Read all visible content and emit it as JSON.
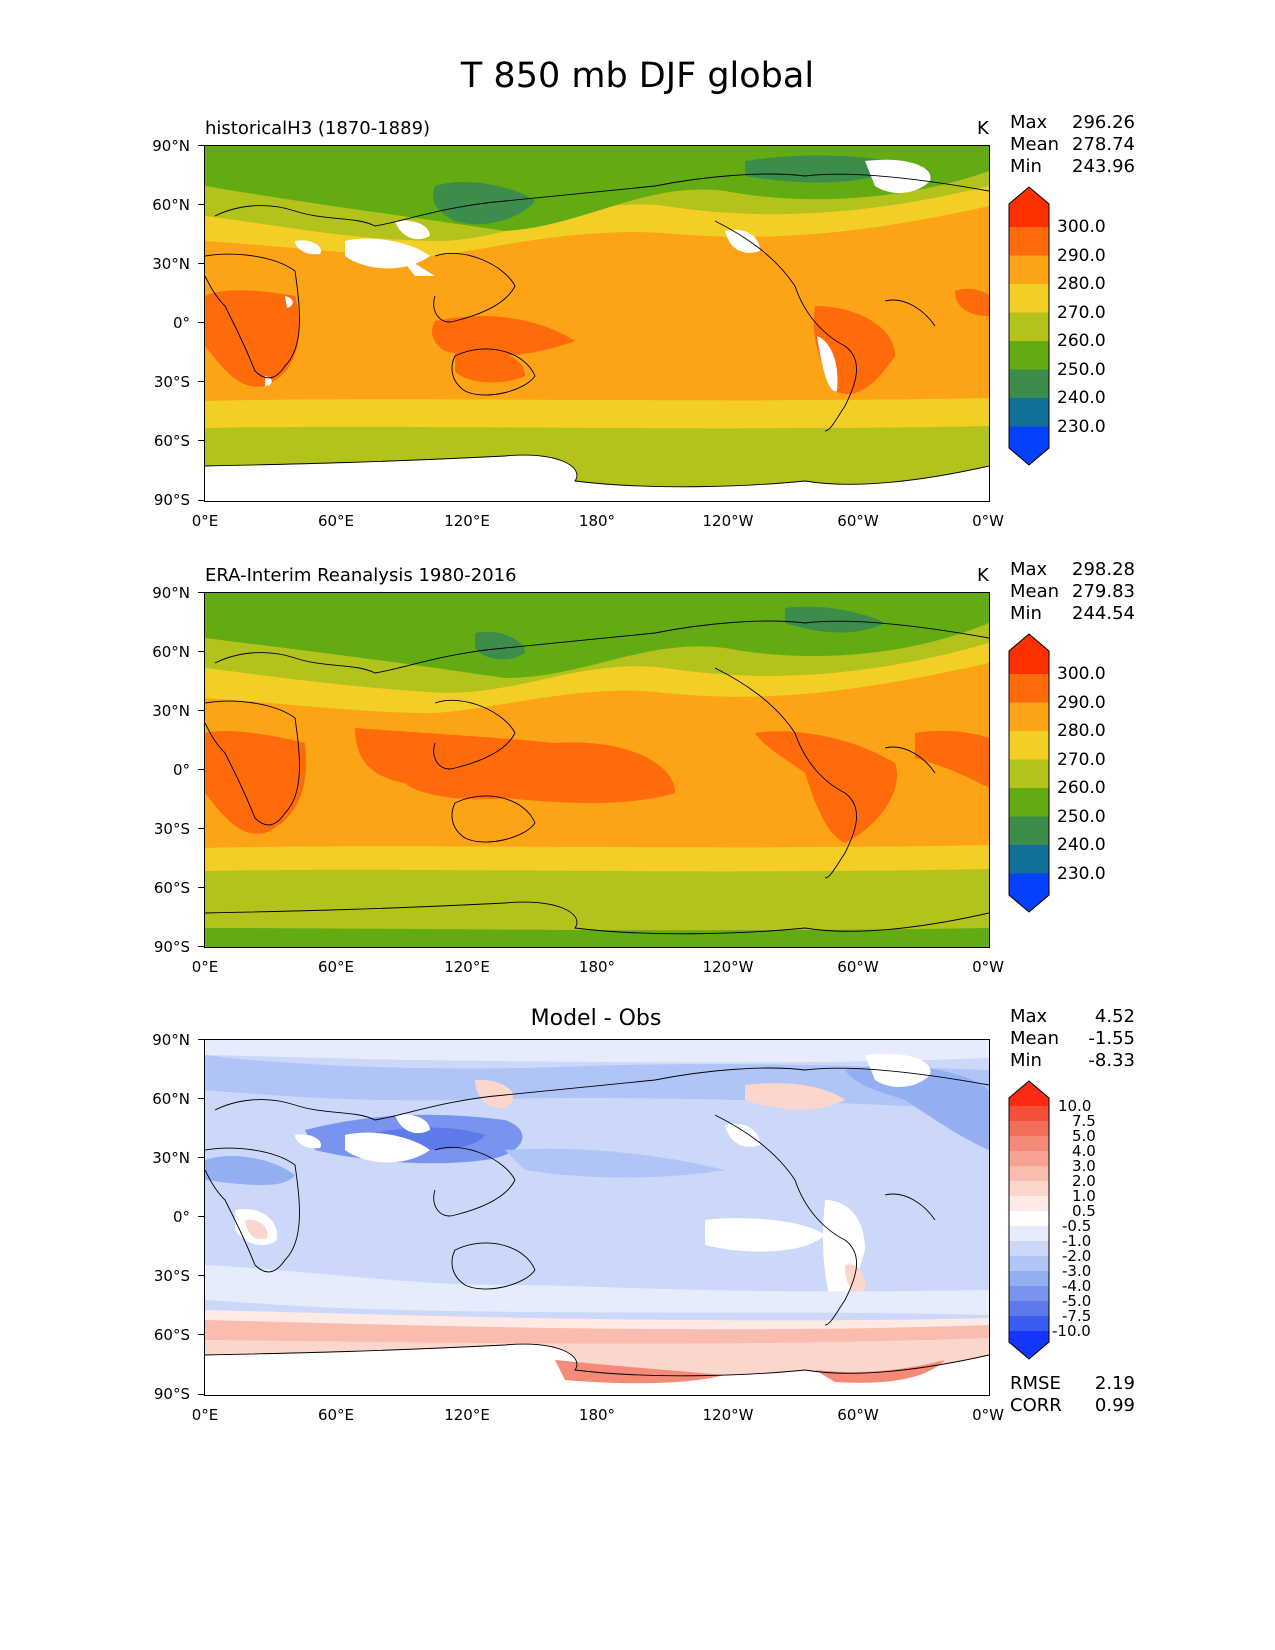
{
  "figure": {
    "title": "T 850 mb DJF global"
  },
  "axes": {
    "lat_labels": [
      "90°N",
      "60°N",
      "30°N",
      "0°",
      "30°S",
      "60°S",
      "90°S"
    ],
    "lon_labels": [
      "0°E",
      "60°E",
      "120°E",
      "180°",
      "120°W",
      "60°W",
      "0°W"
    ]
  },
  "panels": [
    {
      "title": "historicalH3 (1870-1889)",
      "units": "K",
      "stats": [
        {
          "label": "Max",
          "value": "296.26"
        },
        {
          "label": "Mean",
          "value": "278.74"
        },
        {
          "label": "Min",
          "value": "243.96"
        }
      ],
      "colorbar": {
        "labels": [
          "300.0",
          "290.0",
          "280.0",
          "270.0",
          "260.0",
          "250.0",
          "240.0",
          "230.0"
        ],
        "colors": [
          "#ff3000",
          "#ff6a0a",
          "#fca316",
          "#f3cf26",
          "#b3c31c",
          "#63ab12",
          "#3c8c4c",
          "#126f9a",
          "#0640ff"
        ]
      }
    },
    {
      "title": "ERA-Interim Reanalysis 1980-2016",
      "units": "K",
      "stats": [
        {
          "label": "Max",
          "value": "298.28"
        },
        {
          "label": "Mean",
          "value": "279.83"
        },
        {
          "label": "Min",
          "value": "244.54"
        }
      ],
      "colorbar": {
        "labels": [
          "300.0",
          "290.0",
          "280.0",
          "270.0",
          "260.0",
          "250.0",
          "240.0",
          "230.0"
        ],
        "colors": [
          "#ff3000",
          "#ff6a0a",
          "#fca316",
          "#f3cf26",
          "#b3c31c",
          "#63ab12",
          "#3c8c4c",
          "#126f9a",
          "#0640ff"
        ]
      }
    },
    {
      "title": "Model - Obs",
      "stats": [
        {
          "label": "Max",
          "value": "4.52"
        },
        {
          "label": "Mean",
          "value": "-1.55"
        },
        {
          "label": "Min",
          "value": "-8.33"
        }
      ],
      "colorbar": {
        "labels": [
          "10.0",
          "7.5",
          "5.0",
          "4.0",
          "3.0",
          "2.0",
          "1.0",
          "0.5",
          "-0.5",
          "-1.0",
          "-2.0",
          "-3.0",
          "-4.0",
          "-5.0",
          "-7.5",
          "-10.0"
        ],
        "colors": [
          "#ff2a14",
          "#f5503a",
          "#f36e5a",
          "#f58a78",
          "#f7a292",
          "#f9bcae",
          "#fbd6cc",
          "#fdeae4",
          "#ffffff",
          "#e6ecfc",
          "#ccd8fa",
          "#b0c4f6",
          "#94aef2",
          "#7894ee",
          "#5c7aea",
          "#3a5cf0",
          "#1434ff"
        ]
      },
      "scores": [
        {
          "label": "RMSE",
          "value": "2.19"
        },
        {
          "label": "CORR",
          "value": "0.99"
        }
      ]
    }
  ]
}
